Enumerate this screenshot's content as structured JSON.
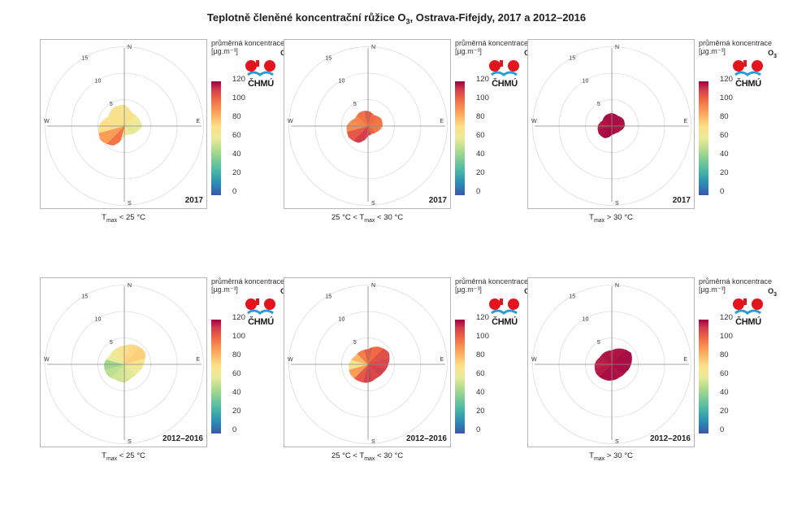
{
  "title": {
    "main": "Teplotně členěné koncentrační růžice O",
    "sub": "3",
    "rest": ", Ostrava-Fifejdy, 2017 a 2012–2016"
  },
  "legend": {
    "title": "průměrná koncentrace",
    "unit": "[µg.m⁻³]",
    "pollutant": "O",
    "pollutant_sub": "3",
    "logo_text": "ČHMÚ",
    "ticks": [
      "120",
      "100",
      "80",
      "60",
      "40",
      "20",
      "0"
    ]
  },
  "compass": {
    "n": "N",
    "s": "S",
    "e": "E",
    "w": "W"
  },
  "ring_labels": [
    "5",
    "10",
    "15"
  ],
  "chart_data": [
    {
      "type": "heatmap",
      "period": "2017",
      "condition": "Tmax < 25 °C",
      "caption": {
        "t": "T",
        "sub": "max",
        "rest": " < 25 °C"
      },
      "wind_speed_rings": [
        5,
        10,
        15
      ],
      "colorscale": {
        "min": 0,
        "max": 120
      },
      "profile": [
        {
          "dir": 0,
          "r": 4.0,
          "c": 66
        },
        {
          "dir": 30,
          "r": 2.8,
          "c": 72
        },
        {
          "dir": 60,
          "r": 3.0,
          "c": 62
        },
        {
          "dir": 90,
          "r": 3.3,
          "c": 60
        },
        {
          "dir": 120,
          "r": 2.4,
          "c": 58
        },
        {
          "dir": 150,
          "r": 1.8,
          "c": 62
        },
        {
          "dir": 180,
          "r": 1.6,
          "c": 66
        },
        {
          "dir": 210,
          "r": 4.2,
          "c": 98
        },
        {
          "dir": 240,
          "r": 5.2,
          "c": 88
        },
        {
          "dir": 270,
          "r": 4.8,
          "c": 72
        },
        {
          "dir": 300,
          "r": 3.5,
          "c": 68
        },
        {
          "dir": 330,
          "r": 4.0,
          "c": 70
        }
      ]
    },
    {
      "type": "heatmap",
      "period": "2017",
      "condition": "25 °C < Tmax < 30 °C",
      "caption": {
        "t": "25 °C < T",
        "sub": "max",
        "rest": " < 30 °C"
      },
      "wind_speed_rings": [
        5,
        10,
        15
      ],
      "colorscale": {
        "min": 0,
        "max": 120
      },
      "profile": [
        {
          "dir": 0,
          "r": 2.8,
          "c": 104
        },
        {
          "dir": 30,
          "r": 2.3,
          "c": 100
        },
        {
          "dir": 60,
          "r": 2.8,
          "c": 98
        },
        {
          "dir": 90,
          "r": 2.7,
          "c": 96
        },
        {
          "dir": 120,
          "r": 2.0,
          "c": 98
        },
        {
          "dir": 150,
          "r": 1.6,
          "c": 102
        },
        {
          "dir": 180,
          "r": 1.8,
          "c": 108
        },
        {
          "dir": 210,
          "r": 3.6,
          "c": 110
        },
        {
          "dir": 240,
          "r": 4.2,
          "c": 104
        },
        {
          "dir": 270,
          "r": 4.0,
          "c": 92
        },
        {
          "dir": 300,
          "r": 2.8,
          "c": 94
        },
        {
          "dir": 330,
          "r": 3.0,
          "c": 98
        }
      ]
    },
    {
      "type": "heatmap",
      "period": "2017",
      "condition": "Tmax > 30 °C",
      "caption": {
        "t": "T",
        "sub": "max",
        "rest": " > 30 °C"
      },
      "wind_speed_rings": [
        5,
        10,
        15
      ],
      "colorscale": {
        "min": 0,
        "max": 120
      },
      "profile": [
        {
          "dir": 0,
          "r": 2.4,
          "c": 118
        },
        {
          "dir": 30,
          "r": 2.2,
          "c": 118
        },
        {
          "dir": 60,
          "r": 2.5,
          "c": 118
        },
        {
          "dir": 90,
          "r": 2.4,
          "c": 117
        },
        {
          "dir": 120,
          "r": 1.8,
          "c": 117
        },
        {
          "dir": 150,
          "r": 1.5,
          "c": 118
        },
        {
          "dir": 180,
          "r": 1.6,
          "c": 119
        },
        {
          "dir": 210,
          "r": 2.6,
          "c": 119
        },
        {
          "dir": 240,
          "r": 2.8,
          "c": 118
        },
        {
          "dir": 270,
          "r": 2.6,
          "c": 116
        },
        {
          "dir": 300,
          "r": 2.0,
          "c": 117
        },
        {
          "dir": 330,
          "r": 2.3,
          "c": 118
        }
      ]
    },
    {
      "type": "heatmap",
      "period": "2012–2016",
      "condition": "Tmax < 25 °C",
      "caption": {
        "t": "T",
        "sub": "max",
        "rest": " < 25 °C"
      },
      "wind_speed_rings": [
        5,
        10,
        15
      ],
      "colorscale": {
        "min": 0,
        "max": 120
      },
      "profile": [
        {
          "dir": 0,
          "r": 3.5,
          "c": 70
        },
        {
          "dir": 30,
          "r": 4.2,
          "c": 74
        },
        {
          "dir": 60,
          "r": 4.5,
          "c": 76
        },
        {
          "dir": 90,
          "r": 3.6,
          "c": 66
        },
        {
          "dir": 120,
          "r": 3.0,
          "c": 60
        },
        {
          "dir": 150,
          "r": 2.8,
          "c": 58
        },
        {
          "dir": 180,
          "r": 3.4,
          "c": 56
        },
        {
          "dir": 210,
          "r": 3.3,
          "c": 54
        },
        {
          "dir": 240,
          "r": 3.8,
          "c": 50
        },
        {
          "dir": 270,
          "r": 3.8,
          "c": 44
        },
        {
          "dir": 300,
          "r": 3.2,
          "c": 60
        },
        {
          "dir": 330,
          "r": 3.3,
          "c": 66
        }
      ]
    },
    {
      "type": "heatmap",
      "period": "2012–2016",
      "condition": "25 °C < Tmax < 30 °C",
      "caption": {
        "t": "25 °C < T",
        "sub": "max",
        "rest": " < 30 °C"
      },
      "wind_speed_rings": [
        5,
        10,
        15
      ],
      "colorscale": {
        "min": 0,
        "max": 120
      },
      "profile": [
        {
          "dir": 0,
          "r": 2.8,
          "c": 104
        },
        {
          "dir": 30,
          "r": 3.8,
          "c": 100
        },
        {
          "dir": 60,
          "r": 4.5,
          "c": 106
        },
        {
          "dir": 90,
          "r": 3.8,
          "c": 108
        },
        {
          "dir": 120,
          "r": 3.2,
          "c": 110
        },
        {
          "dir": 150,
          "r": 3.0,
          "c": 108
        },
        {
          "dir": 180,
          "r": 3.4,
          "c": 110
        },
        {
          "dir": 210,
          "r": 3.6,
          "c": 104
        },
        {
          "dir": 240,
          "r": 3.8,
          "c": 88
        },
        {
          "dir": 270,
          "r": 3.6,
          "c": 66
        },
        {
          "dir": 300,
          "r": 2.9,
          "c": 82
        },
        {
          "dir": 330,
          "r": 2.8,
          "c": 96
        }
      ]
    },
    {
      "type": "heatmap",
      "period": "2012–2016",
      "condition": "Tmax > 30 °C",
      "caption": {
        "t": "T",
        "sub": "max",
        "rest": " > 30 °C"
      },
      "wind_speed_rings": [
        5,
        10,
        15
      ],
      "colorscale": {
        "min": 0,
        "max": 120
      },
      "profile": [
        {
          "dir": 0,
          "r": 2.6,
          "c": 116
        },
        {
          "dir": 30,
          "r": 3.4,
          "c": 117
        },
        {
          "dir": 60,
          "r": 4.2,
          "c": 118
        },
        {
          "dir": 90,
          "r": 3.6,
          "c": 118
        },
        {
          "dir": 120,
          "r": 3.0,
          "c": 118
        },
        {
          "dir": 150,
          "r": 2.8,
          "c": 117
        },
        {
          "dir": 180,
          "r": 3.0,
          "c": 118
        },
        {
          "dir": 210,
          "r": 3.2,
          "c": 118
        },
        {
          "dir": 240,
          "r": 3.4,
          "c": 116
        },
        {
          "dir": 270,
          "r": 3.2,
          "c": 115
        },
        {
          "dir": 300,
          "r": 2.6,
          "c": 116
        },
        {
          "dir": 330,
          "r": 2.6,
          "c": 117
        }
      ]
    }
  ]
}
